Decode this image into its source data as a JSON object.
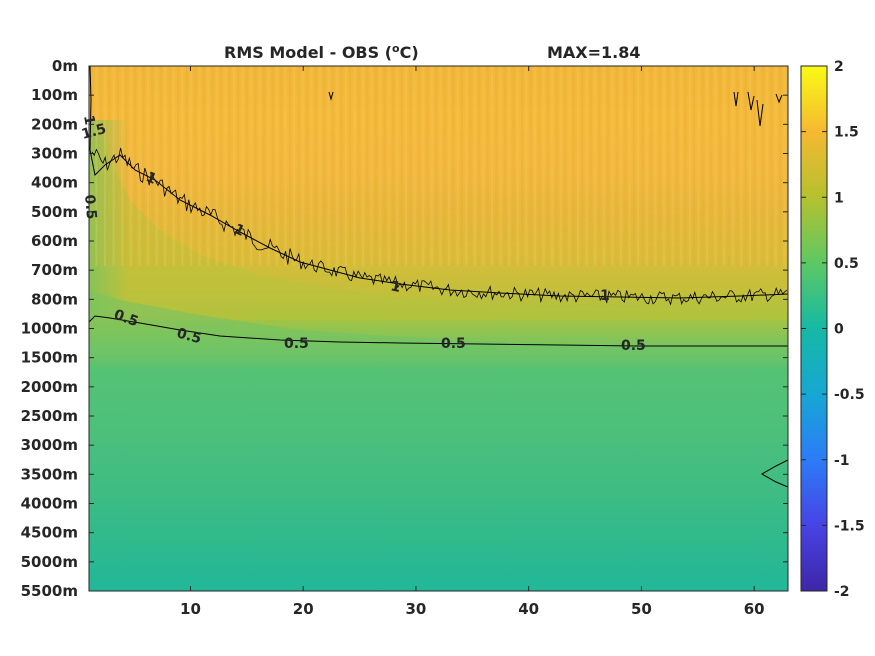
{
  "title": "RMS Model - OBS (",
  "title_unit_sup": "o",
  "title_unit_end": "C)",
  "max_label": "MAX=1.84",
  "chart_data": {
    "type": "heatmap",
    "title": "RMS Model - OBS (°C)",
    "annotation": "MAX=1.84",
    "xlabel": "",
    "ylabel": "",
    "xlim": [
      1,
      63
    ],
    "x_ticks": [
      10,
      20,
      30,
      40,
      50,
      60
    ],
    "y_tick_labels": [
      "0m",
      "100m",
      "200m",
      "300m",
      "400m",
      "500m",
      "600m",
      "700m",
      "800m",
      "1000m",
      "1500m",
      "2000m",
      "2500m",
      "3000m",
      "3500m",
      "4000m",
      "4500m",
      "5000m",
      "5500m"
    ],
    "colorbar": {
      "range": [
        -2,
        2
      ],
      "ticks": [
        2,
        1.5,
        1,
        0.5,
        0,
        -0.5,
        -1,
        -1.5,
        -2
      ],
      "colormap": "parula",
      "colors": [
        "#3e26a8",
        "#4743e4",
        "#2c7cf7",
        "#17a7d3",
        "#15b9a4",
        "#5ec863",
        "#b5c12e",
        "#f5b931",
        "#f9fb15"
      ]
    },
    "depth_profile": {
      "depths": [
        "0m",
        "100m",
        "200m",
        "300m",
        "400m",
        "500m",
        "600m",
        "700m",
        "800m",
        "1000m",
        "1500m",
        "2000m",
        "2500m",
        "3000m",
        "3500m",
        "4000m",
        "4500m",
        "5000m",
        "5500m"
      ],
      "typical_rms": [
        1.25,
        1.3,
        1.3,
        1.25,
        1.2,
        1.15,
        1.1,
        1.05,
        0.95,
        0.7,
        0.5,
        0.45,
        0.45,
        0.45,
        0.45,
        0.4,
        0.35,
        0.3,
        0.25
      ]
    },
    "contours": [
      {
        "level": 1,
        "depth_index_by_x": [
          [
            1,
            1.2
          ],
          [
            5,
            3.0
          ],
          [
            10,
            4.5
          ],
          [
            20,
            6.8
          ],
          [
            30,
            7.6
          ],
          [
            40,
            7.8
          ],
          [
            50,
            8.0
          ],
          [
            63,
            7.9
          ]
        ]
      },
      {
        "level": 0.5,
        "depth_index_by_x": [
          [
            1,
            8.9
          ],
          [
            5,
            8.7
          ],
          [
            10,
            9.0
          ],
          [
            20,
            9.4
          ],
          [
            30,
            9.5
          ],
          [
            40,
            9.55
          ],
          [
            50,
            9.6
          ],
          [
            63,
            9.6
          ]
        ]
      }
    ],
    "contour_labels": [
      "1",
      "1.5",
      "0.5",
      "1",
      "1",
      "1",
      "1",
      "0.5",
      "0.5",
      "0.5",
      "0.5",
      "0.5"
    ]
  }
}
